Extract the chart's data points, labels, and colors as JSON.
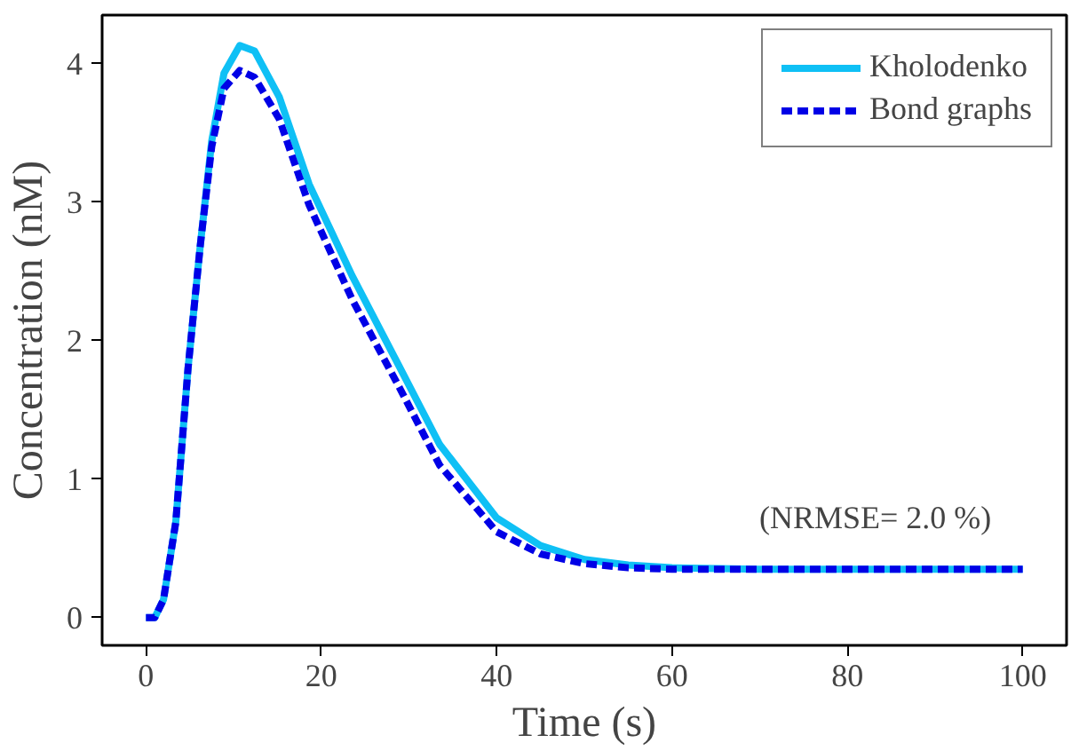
{
  "chart_data": {
    "type": "line",
    "xlabel": "Time (s)",
    "ylabel": "Concentration (nM)",
    "xlim": [
      -5,
      105
    ],
    "ylim": [
      -0.2,
      4.35
    ],
    "xticks": [
      0,
      20,
      40,
      60,
      80,
      100
    ],
    "yticks": [
      0,
      1,
      2,
      3,
      4
    ],
    "grid": false,
    "legend": "top right",
    "annotations": [
      "(NRMSE= 2.0 %)"
    ],
    "series": [
      {
        "name": "Kholodenko",
        "color": "#0fc0f5",
        "line_style": "solid",
        "x": [
          0,
          1,
          2,
          3.4,
          4.8,
          6.2,
          7.5,
          8.9,
          10.7,
          12.4,
          15.2,
          18.6,
          23.5,
          29,
          33.5,
          40,
          45,
          50,
          55,
          60,
          70,
          80,
          90,
          100
        ],
        "values": [
          0,
          0,
          0.13,
          0.69,
          1.8,
          2.69,
          3.44,
          3.93,
          4.13,
          4.09,
          3.76,
          3.13,
          2.47,
          1.8,
          1.25,
          0.72,
          0.52,
          0.42,
          0.38,
          0.36,
          0.35,
          0.35,
          0.35,
          0.35
        ]
      },
      {
        "name": "Bond graphs",
        "color": "#0000e6",
        "line_style": "dashed",
        "x": [
          0,
          1,
          2,
          3.4,
          4.8,
          6.2,
          7.5,
          8.9,
          10.7,
          12.4,
          15.2,
          18.6,
          23.5,
          29,
          33.5,
          40,
          45,
          50,
          55,
          60,
          70,
          80,
          90,
          100
        ],
        "values": [
          0,
          0,
          0.13,
          0.69,
          1.8,
          2.69,
          3.4,
          3.82,
          3.95,
          3.9,
          3.6,
          2.98,
          2.3,
          1.65,
          1.1,
          0.62,
          0.46,
          0.39,
          0.36,
          0.35,
          0.35,
          0.35,
          0.35,
          0.35
        ]
      }
    ]
  }
}
